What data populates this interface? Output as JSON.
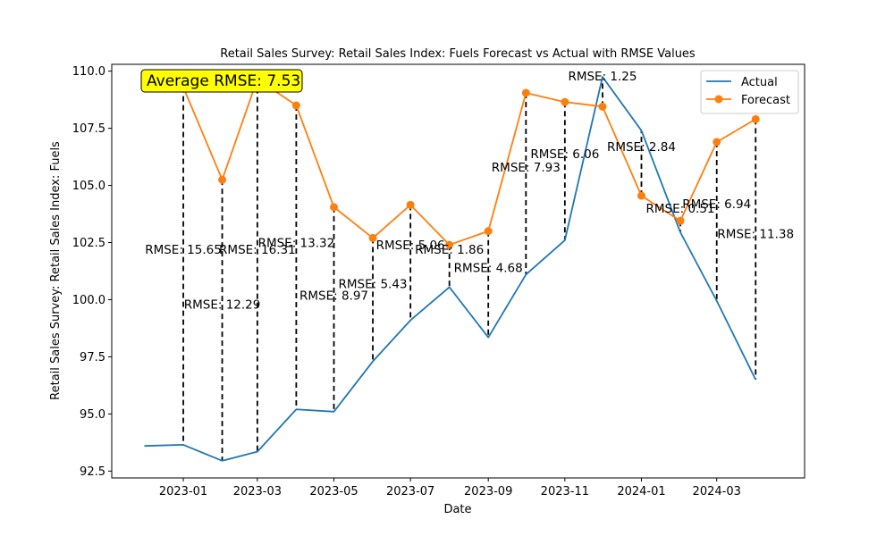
{
  "chart_data": {
    "type": "line",
    "title": "Retail Sales Survey: Retail Sales Index: Fuels Forecast vs Actual with RMSE Values",
    "xlabel": "Date",
    "ylabel": "Retail Sales Survey: Retail Sales Index: Fuels",
    "ylim": [
      92.2,
      110.3
    ],
    "yticks": [
      "92.5",
      "95.0",
      "97.5",
      "100.0",
      "102.5",
      "105.0",
      "107.5",
      "110.0"
    ],
    "ytick_values": [
      92.5,
      95.0,
      97.5,
      100.0,
      102.5,
      105.0,
      107.5,
      110.0
    ],
    "xticks": [
      "2023-01",
      "2023-03",
      "2023-05",
      "2023-07",
      "2023-09",
      "2023-11",
      "2024-01",
      "2024-03"
    ],
    "xlim": [
      "2022-11-05",
      "2024-05-10"
    ],
    "legend_position": "top-right",
    "series": [
      {
        "name": "Actual",
        "color": "#1f77b4",
        "marker": "none",
        "x": [
          "2022-12-01",
          "2023-01-01",
          "2023-02-01",
          "2023-03-01",
          "2023-04-01",
          "2023-05-01",
          "2023-06-01",
          "2023-07-01",
          "2023-08-01",
          "2023-09-01",
          "2023-10-01",
          "2023-11-01",
          "2023-12-01",
          "2024-01-01",
          "2024-02-01",
          "2024-03-01",
          "2024-04-01"
        ],
        "values": [
          93.6,
          93.65,
          92.95,
          93.35,
          95.2,
          95.1,
          97.3,
          99.1,
          100.55,
          98.35,
          101.1,
          102.6,
          109.75,
          107.4,
          102.95,
          99.95,
          96.5
        ]
      },
      {
        "name": "Forecast",
        "color": "#ff7f0e",
        "marker": "circle",
        "x": [
          "2023-01-01",
          "2023-02-01",
          "2023-03-01",
          "2023-04-01",
          "2023-05-01",
          "2023-06-01",
          "2023-07-01",
          "2023-08-01",
          "2023-09-01",
          "2023-10-01",
          "2023-11-01",
          "2023-12-01",
          "2024-01-01",
          "2024-02-01",
          "2024-03-01",
          "2024-04-01"
        ],
        "values": [
          109.3,
          105.25,
          109.65,
          108.5,
          104.05,
          102.7,
          104.15,
          102.4,
          103.0,
          109.05,
          108.65,
          108.45,
          104.55,
          103.45,
          106.9,
          107.9
        ]
      }
    ],
    "rmse_labels": [
      {
        "date": "2023-01-01",
        "text": "RMSE: 15.65",
        "value": 102.2
      },
      {
        "date": "2023-02-01",
        "text": "RMSE: 12.29",
        "value": 99.8
      },
      {
        "date": "2023-03-01",
        "text": "RMSE: 16.31",
        "value": 102.2
      },
      {
        "date": "2023-04-01",
        "text": "RMSE: 13.32",
        "value": 102.5
      },
      {
        "date": "2023-05-01",
        "text": "RMSE: 8.97",
        "value": 100.2
      },
      {
        "date": "2023-06-01",
        "text": "RMSE: 5.43",
        "value": 100.7
      },
      {
        "date": "2023-07-01",
        "text": "RMSE: 5.06",
        "value": 102.4
      },
      {
        "date": "2023-08-01",
        "text": "RMSE: 1.86",
        "value": 102.2
      },
      {
        "date": "2023-09-01",
        "text": "RMSE: 4.68",
        "value": 101.4
      },
      {
        "date": "2023-10-01",
        "text": "RMSE: 7.93",
        "value": 105.8
      },
      {
        "date": "2023-11-01",
        "text": "RMSE: 6.06",
        "value": 106.4
      },
      {
        "date": "2023-12-01",
        "text": "RMSE: 1.25",
        "value": 109.8
      },
      {
        "date": "2024-01-01",
        "text": "RMSE: 2.84",
        "value": 106.7
      },
      {
        "date": "2024-02-01",
        "text": "RMSE: 0.51",
        "value": 104.0
      },
      {
        "date": "2024-03-01",
        "text": "RMSE: 6.94",
        "value": 104.2
      },
      {
        "date": "2024-04-01",
        "text": "RMSE: 11.38",
        "value": 102.9
      }
    ],
    "average_label": "Average RMSE: 7.53",
    "average_box_color": "#ffff00"
  }
}
